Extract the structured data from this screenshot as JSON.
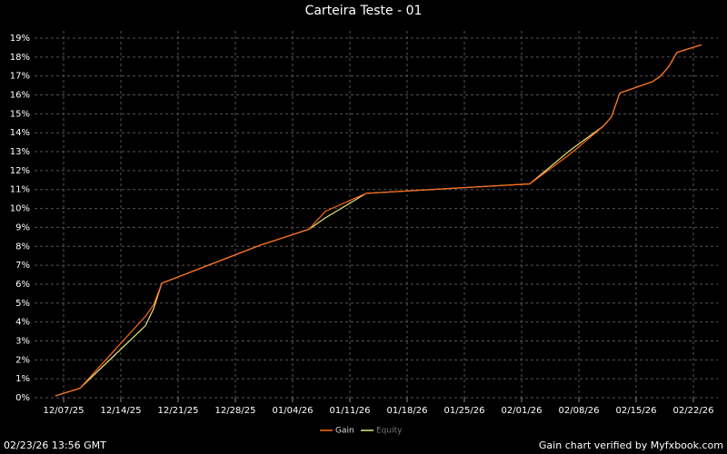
{
  "chart_data": {
    "type": "line",
    "title": "Carteira Teste - 01",
    "x": [
      "12/06/25",
      "12/09/25",
      "12/17/25",
      "12/18/25",
      "12/19/25",
      "12/31/25",
      "01/06/26",
      "01/08/26",
      "01/13/26",
      "02/02/26",
      "02/07/26",
      "02/11/26",
      "02/12/26",
      "02/13/26",
      "02/17/26",
      "02/18/26",
      "02/19/26",
      "02/20/26",
      "02/23/26"
    ],
    "series": [
      {
        "name": "Gain",
        "color": "#ff6a1a",
        "values": [
          0.1,
          0.5,
          4.3,
          4.9,
          6.05,
          8.05,
          8.9,
          9.85,
          10.8,
          11.3,
          12.9,
          14.35,
          14.85,
          16.1,
          16.7,
          17.0,
          17.5,
          18.25,
          18.65
        ]
      },
      {
        "name": "Equity",
        "color": "#e6e67a",
        "values": [
          0.1,
          0.5,
          3.8,
          4.7,
          6.05,
          8.05,
          8.9,
          9.5,
          10.8,
          11.3,
          13.1,
          14.35,
          14.85,
          16.1,
          16.7,
          17.0,
          17.5,
          18.25,
          18.65
        ]
      }
    ],
    "xlim": [
      "12/04/25",
      "02/25/26"
    ],
    "xticks": [
      "12/07/25",
      "12/14/25",
      "12/21/25",
      "12/28/25",
      "01/04/26",
      "01/11/26",
      "01/18/26",
      "01/25/26",
      "02/01/26",
      "02/08/26",
      "02/15/26",
      "02/22/26"
    ],
    "ylim": [
      0,
      19
    ],
    "yticks": [
      {
        "value": 0,
        "label": "0%"
      },
      {
        "value": 1,
        "label": "1%"
      },
      {
        "value": 2,
        "label": "2%"
      },
      {
        "value": 3,
        "label": "3%"
      },
      {
        "value": 4,
        "label": "4%"
      },
      {
        "value": 5,
        "label": "5%"
      },
      {
        "value": 6,
        "label": "6%"
      },
      {
        "value": 7,
        "label": "7%"
      },
      {
        "value": 8,
        "label": "8%"
      },
      {
        "value": 9,
        "label": "9%"
      },
      {
        "value": 10,
        "label": "10%"
      },
      {
        "value": 11,
        "label": "11%"
      },
      {
        "value": 12,
        "label": "12%"
      },
      {
        "value": 13,
        "label": "13%"
      },
      {
        "value": 14,
        "label": "14%"
      },
      {
        "value": 15,
        "label": "15%"
      },
      {
        "value": 16,
        "label": "16%"
      },
      {
        "value": 17,
        "label": "17%"
      },
      {
        "value": 18,
        "label": "18%"
      },
      {
        "value": 19,
        "label": "19%"
      }
    ],
    "grid": true,
    "legend": "bottom",
    "footer_left": "02/23/26 13:56 GMT",
    "footer_right": "Gain chart verified by Myfxbook.com"
  }
}
